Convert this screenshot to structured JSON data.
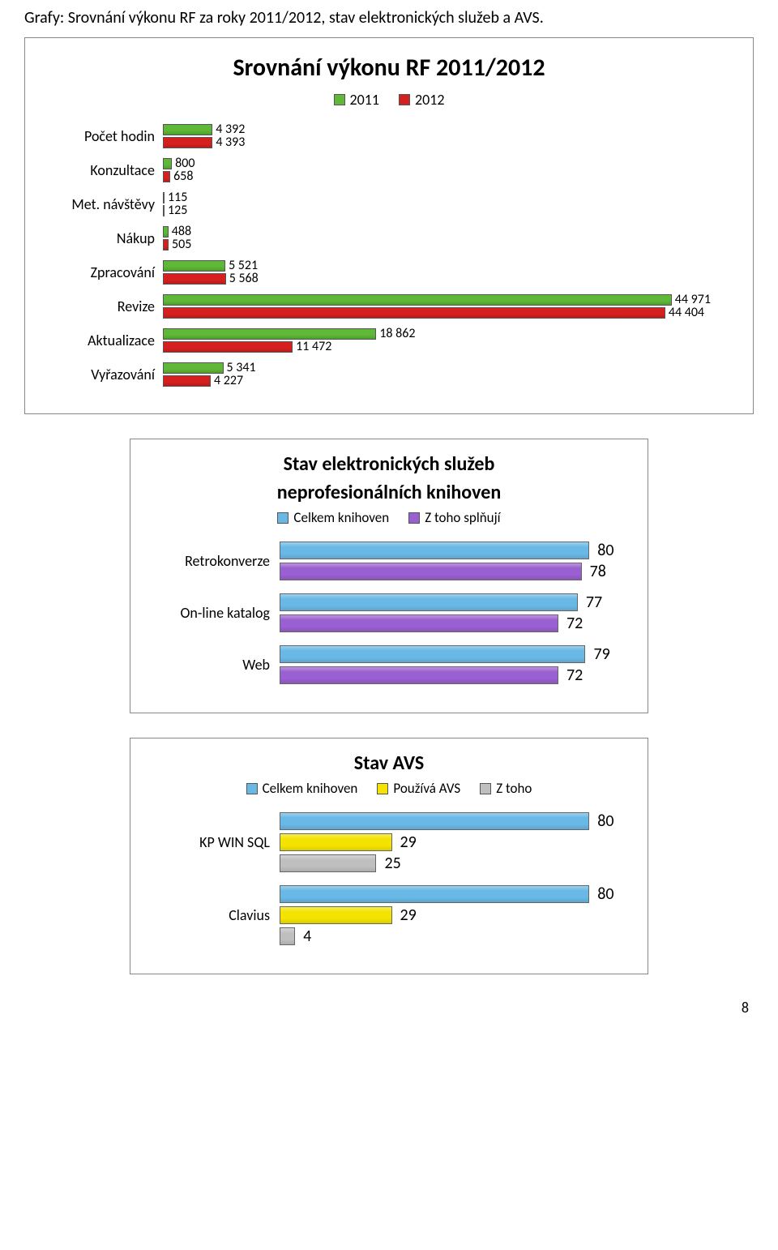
{
  "page": {
    "heading": "Grafy: Srovnání výkonu RF za roky 2011/2012, stav elektronických služeb a AVS.",
    "page_number": "8"
  },
  "chart1": {
    "type": "bar-horizontal-grouped",
    "title": "Srovnání výkonu RF 2011/2012",
    "legend": [
      {
        "label": "2011",
        "color": "#5fb837"
      },
      {
        "label": "2012",
        "color": "#d62020"
      }
    ],
    "xlim": [
      0,
      50000
    ],
    "bar_border": "#555555",
    "label_fontsize": 18,
    "value_fontsize": 16,
    "categories": [
      {
        "label": "Počet hodin",
        "v2011": 4392,
        "v2012": 4393
      },
      {
        "label": "Konzultace",
        "v2011": 800,
        "v2012": 658
      },
      {
        "label": "Met. návštěvy",
        "v2011": 115,
        "v2012": 125
      },
      {
        "label": "Nákup",
        "v2011": 488,
        "v2012": 505
      },
      {
        "label": "Zpracování",
        "v2011": 5521,
        "v2012": 5568
      },
      {
        "label": "Revize",
        "v2011": 44971,
        "v2012": 44404
      },
      {
        "label": "Aktualizace",
        "v2011": 18862,
        "v2012": 11472
      },
      {
        "label": "Vyřazování",
        "v2011": 5341,
        "v2012": 4227
      }
    ]
  },
  "chart2": {
    "type": "bar-horizontal-grouped",
    "title_line1": "Stav elektronických služeb",
    "title_line2": "neprofesionálních knihoven",
    "legend": [
      {
        "label": "Celkem knihoven",
        "color": "#69b8e6"
      },
      {
        "label": "Z toho splňují",
        "color": "#9a5fd1"
      }
    ],
    "xlim": [
      0,
      90
    ],
    "bar_border": "#666666",
    "categories": [
      {
        "label": "Retrokonverze",
        "a": 80,
        "b": 78
      },
      {
        "label": "On-line katalog",
        "a": 77,
        "b": 72
      },
      {
        "label": "Web",
        "a": 79,
        "b": 72
      }
    ]
  },
  "chart3": {
    "type": "bar-horizontal-grouped",
    "title": "Stav AVS",
    "legend": [
      {
        "label": "Celkem knihoven",
        "color": "#69b8e6"
      },
      {
        "label": "Používá AVS",
        "color": "#f4e300"
      },
      {
        "label": "Z toho",
        "color": "#bfbfbf"
      }
    ],
    "xlim": [
      0,
      90
    ],
    "bar_border": "#666666",
    "categories": [
      {
        "label": "KP WIN SQL",
        "a": 80,
        "b": 29,
        "c": 25
      },
      {
        "label": "Clavius",
        "a": 80,
        "b": 29,
        "c": 4
      }
    ]
  }
}
